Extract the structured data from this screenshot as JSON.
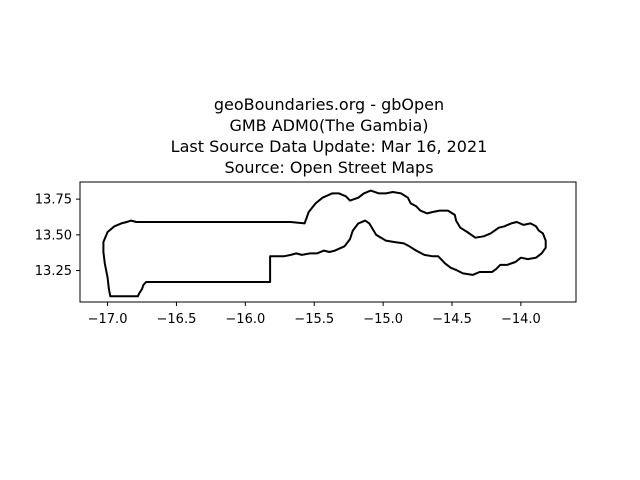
{
  "title": {
    "lines": [
      "geoBoundaries.org - gbOpen",
      "GMB ADM0(The Gambia)",
      "Last Source Data Update: Mar 16, 2021",
      "Source: Open Street Maps"
    ]
  },
  "map": {
    "country": "The Gambia",
    "boundary_color": "#000000",
    "background": "#ffffff",
    "xlim": [
      -17.2,
      -13.6
    ],
    "ylim": [
      13.03,
      13.87
    ],
    "x_ticks": [
      "−17.0",
      "−16.5",
      "−16.0",
      "−15.5",
      "−15.0",
      "−14.5",
      "−14.0"
    ],
    "x_tick_values": [
      -17.0,
      -16.5,
      -16.0,
      -15.5,
      -15.0,
      -14.5,
      -14.0
    ],
    "y_ticks": [
      "13.25",
      "13.50",
      "13.75"
    ],
    "y_tick_values": [
      13.25,
      13.5,
      13.75
    ],
    "boundary": [
      [
        -16.86,
        13.59
      ],
      [
        -16.83,
        13.6
      ],
      [
        -16.79,
        13.59
      ],
      [
        -16.5,
        13.59
      ],
      [
        -16.0,
        13.59
      ],
      [
        -15.67,
        13.59
      ],
      [
        -15.57,
        13.58
      ],
      [
        -15.54,
        13.66
      ],
      [
        -15.49,
        13.72
      ],
      [
        -15.44,
        13.76
      ],
      [
        -15.37,
        13.79
      ],
      [
        -15.32,
        13.79
      ],
      [
        -15.27,
        13.77
      ],
      [
        -15.24,
        13.74
      ],
      [
        -15.18,
        13.76
      ],
      [
        -15.14,
        13.79
      ],
      [
        -15.09,
        13.81
      ],
      [
        -15.03,
        13.79
      ],
      [
        -14.98,
        13.79
      ],
      [
        -14.93,
        13.8
      ],
      [
        -14.87,
        13.79
      ],
      [
        -14.82,
        13.76
      ],
      [
        -14.8,
        13.72
      ],
      [
        -14.76,
        13.7
      ],
      [
        -14.73,
        13.67
      ],
      [
        -14.68,
        13.65
      ],
      [
        -14.64,
        13.66
      ],
      [
        -14.59,
        13.67
      ],
      [
        -14.53,
        13.67
      ],
      [
        -14.48,
        13.64
      ],
      [
        -14.47,
        13.6
      ],
      [
        -14.44,
        13.55
      ],
      [
        -14.39,
        13.52
      ],
      [
        -14.33,
        13.48
      ],
      [
        -14.27,
        13.49
      ],
      [
        -14.22,
        13.51
      ],
      [
        -14.19,
        13.53
      ],
      [
        -14.16,
        13.55
      ],
      [
        -14.12,
        13.56
      ],
      [
        -14.07,
        13.58
      ],
      [
        -14.03,
        13.59
      ],
      [
        -13.98,
        13.57
      ],
      [
        -13.93,
        13.58
      ],
      [
        -13.89,
        13.56
      ],
      [
        -13.87,
        13.53
      ],
      [
        -13.84,
        13.51
      ],
      [
        -13.82,
        13.46
      ],
      [
        -13.82,
        13.41
      ],
      [
        -13.85,
        13.37
      ],
      [
        -13.89,
        13.34
      ],
      [
        -13.95,
        13.33
      ],
      [
        -14.0,
        13.34
      ],
      [
        -14.04,
        13.31
      ],
      [
        -14.1,
        13.29
      ],
      [
        -14.15,
        13.29
      ],
      [
        -14.18,
        13.26
      ],
      [
        -14.21,
        13.24
      ],
      [
        -14.26,
        13.24
      ],
      [
        -14.3,
        13.24
      ],
      [
        -14.35,
        13.22
      ],
      [
        -14.42,
        13.23
      ],
      [
        -14.46,
        13.25
      ],
      [
        -14.51,
        13.27
      ],
      [
        -14.55,
        13.3
      ],
      [
        -14.6,
        13.35
      ],
      [
        -14.64,
        13.35
      ],
      [
        -14.7,
        13.36
      ],
      [
        -14.76,
        13.39
      ],
      [
        -14.81,
        13.42
      ],
      [
        -14.85,
        13.44
      ],
      [
        -14.92,
        13.45
      ],
      [
        -14.98,
        13.46
      ],
      [
        -15.05,
        13.5
      ],
      [
        -15.1,
        13.58
      ],
      [
        -15.13,
        13.6
      ],
      [
        -15.18,
        13.58
      ],
      [
        -15.22,
        13.53
      ],
      [
        -15.24,
        13.47
      ],
      [
        -15.28,
        13.42
      ],
      [
        -15.35,
        13.39
      ],
      [
        -15.39,
        13.38
      ],
      [
        -15.43,
        13.39
      ],
      [
        -15.48,
        13.37
      ],
      [
        -15.53,
        13.37
      ],
      [
        -15.59,
        13.36
      ],
      [
        -15.63,
        13.37
      ],
      [
        -15.67,
        13.36
      ],
      [
        -15.72,
        13.35
      ],
      [
        -15.82,
        13.35
      ],
      [
        -15.82,
        13.17
      ],
      [
        -15.9,
        13.17
      ],
      [
        -15.97,
        13.17
      ],
      [
        -16.0,
        13.17
      ],
      [
        -16.3,
        13.17
      ],
      [
        -16.6,
        13.17
      ],
      [
        -16.72,
        13.17
      ],
      [
        -16.74,
        13.15
      ],
      [
        -16.75,
        13.12
      ],
      [
        -16.77,
        13.09
      ],
      [
        -16.78,
        13.07
      ],
      [
        -16.9,
        13.07
      ],
      [
        -16.98,
        13.07
      ],
      [
        -16.99,
        13.12
      ],
      [
        -17.0,
        13.2
      ],
      [
        -17.02,
        13.3
      ],
      [
        -17.03,
        13.38
      ],
      [
        -17.03,
        13.45
      ],
      [
        -17.0,
        13.52
      ],
      [
        -16.95,
        13.56
      ],
      [
        -16.9,
        13.58
      ],
      [
        -16.86,
        13.59
      ]
    ]
  }
}
